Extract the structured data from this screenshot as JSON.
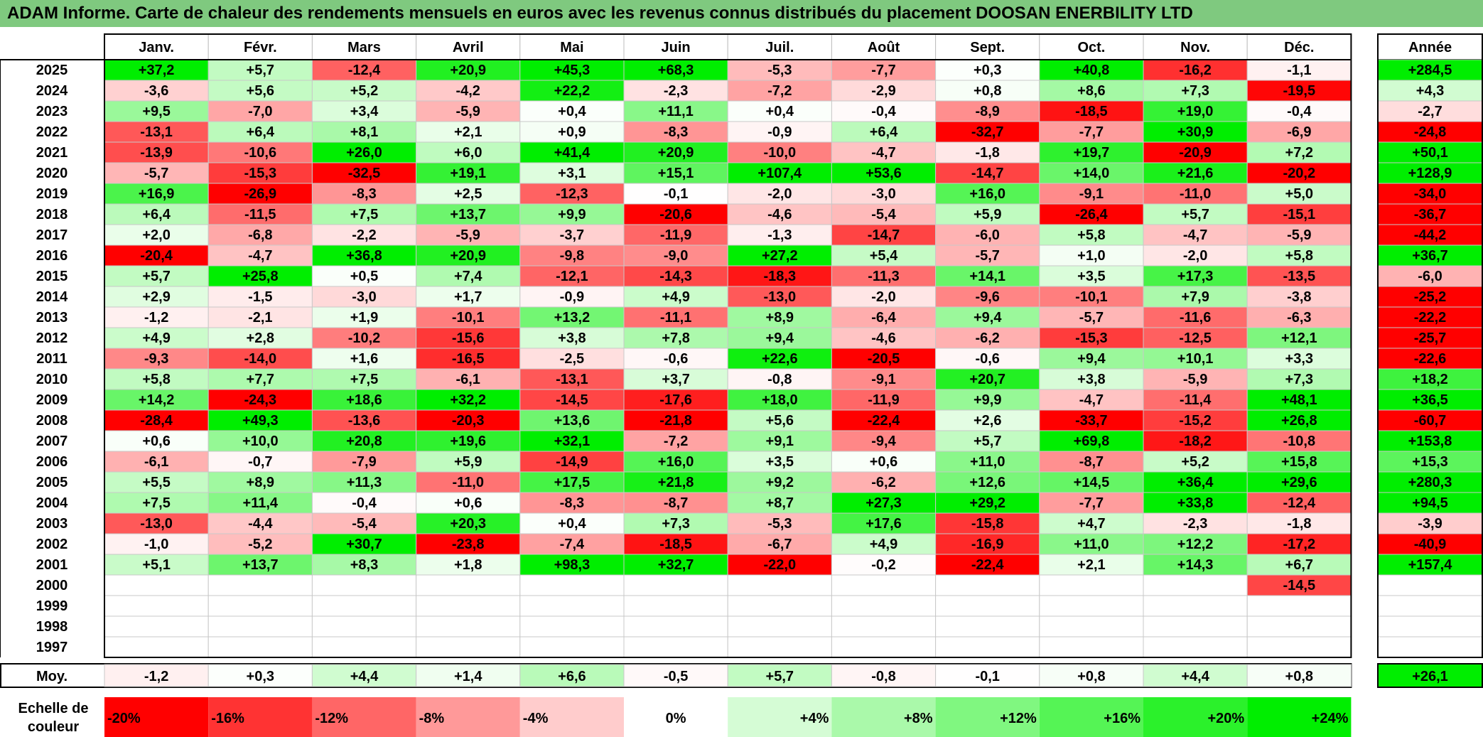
{
  "title": "ADAM Informe. Carte de chaleur des rendements mensuels en euros avec les revenus connus distribués du placement DOOSAN ENERBILITY LTD",
  "chart_data": {
    "type": "heatmap",
    "columns": [
      "Janv.",
      "Févr.",
      "Mars",
      "Avril",
      "Mai",
      "Juin",
      "Juil.",
      "Août",
      "Sept.",
      "Oct.",
      "Nov.",
      "Déc."
    ],
    "annual_header": "Année",
    "rows": [
      {
        "year": "2025",
        "values": [
          "+37,2",
          "+5,7",
          "-12,4",
          "+20,9",
          "+45,3",
          "+68,3",
          "-5,3",
          "-7,7",
          "+0,3",
          "+40,8",
          "-16,2",
          "-1,1"
        ],
        "annual": "+284,5"
      },
      {
        "year": "2024",
        "values": [
          "-3,6",
          "+5,6",
          "+5,2",
          "-4,2",
          "+22,2",
          "-2,3",
          "-7,2",
          "-2,9",
          "+0,8",
          "+8,6",
          "+7,3",
          "-19,5"
        ],
        "annual": "+4,3"
      },
      {
        "year": "2023",
        "values": [
          "+9,5",
          "-7,0",
          "+3,4",
          "-5,9",
          "+0,4",
          "+11,1",
          "+0,4",
          "-0,4",
          "-8,9",
          "-18,5",
          "+19,0",
          "-0,4"
        ],
        "annual": "-2,7"
      },
      {
        "year": "2022",
        "values": [
          "-13,1",
          "+6,4",
          "+8,1",
          "+2,1",
          "+0,9",
          "-8,3",
          "-0,9",
          "+6,4",
          "-32,7",
          "-7,7",
          "+30,9",
          "-6,9"
        ],
        "annual": "-24,8"
      },
      {
        "year": "2021",
        "values": [
          "-13,9",
          "-10,6",
          "+26,0",
          "+6,0",
          "+41,4",
          "+20,9",
          "-10,0",
          "-4,7",
          "-1,8",
          "+19,7",
          "-20,9",
          "+7,2"
        ],
        "annual": "+50,1"
      },
      {
        "year": "2020",
        "values": [
          "-5,7",
          "-15,3",
          "-32,5",
          "+19,1",
          "+3,1",
          "+15,1",
          "+107,4",
          "+53,6",
          "-14,7",
          "+14,0",
          "+21,6",
          "-20,2"
        ],
        "annual": "+128,9"
      },
      {
        "year": "2019",
        "values": [
          "+16,9",
          "-26,9",
          "-8,3",
          "+2,5",
          "-12,3",
          "-0,1",
          "-2,0",
          "-3,0",
          "+16,0",
          "-9,1",
          "-11,0",
          "+5,0"
        ],
        "annual": "-34,0"
      },
      {
        "year": "2018",
        "values": [
          "+6,4",
          "-11,5",
          "+7,5",
          "+13,7",
          "+9,9",
          "-20,6",
          "-4,6",
          "-5,4",
          "+5,9",
          "-26,4",
          "+5,7",
          "-15,1"
        ],
        "annual": "-36,7"
      },
      {
        "year": "2017",
        "values": [
          "+2,0",
          "-6,8",
          "-2,2",
          "-5,9",
          "-3,7",
          "-11,9",
          "-1,3",
          "-14,7",
          "-6,0",
          "+5,8",
          "-4,7",
          "-5,9"
        ],
        "annual": "-44,2"
      },
      {
        "year": "2016",
        "values": [
          "-20,4",
          "-4,7",
          "+36,8",
          "+20,9",
          "-9,8",
          "-9,0",
          "+27,2",
          "+5,4",
          "-5,7",
          "+1,0",
          "-2,0",
          "+5,8"
        ],
        "annual": "+36,7"
      },
      {
        "year": "2015",
        "values": [
          "+5,7",
          "+25,8",
          "+0,5",
          "+7,4",
          "-12,1",
          "-14,3",
          "-18,3",
          "-11,3",
          "+14,1",
          "+3,5",
          "+17,3",
          "-13,5"
        ],
        "annual": "-6,0"
      },
      {
        "year": "2014",
        "values": [
          "+2,9",
          "-1,5",
          "-3,0",
          "+1,7",
          "-0,9",
          "+4,9",
          "-13,0",
          "-2,0",
          "-9,6",
          "-10,1",
          "+7,9",
          "-3,8"
        ],
        "annual": "-25,2"
      },
      {
        "year": "2013",
        "values": [
          "-1,2",
          "-2,1",
          "+1,9",
          "-10,1",
          "+13,2",
          "-11,1",
          "+8,9",
          "-6,4",
          "+9,4",
          "-5,7",
          "-11,6",
          "-6,3"
        ],
        "annual": "-22,2"
      },
      {
        "year": "2012",
        "values": [
          "+4,9",
          "+2,8",
          "-10,2",
          "-15,6",
          "+3,8",
          "+7,8",
          "+9,4",
          "-4,6",
          "-6,2",
          "-15,3",
          "-12,5",
          "+12,1"
        ],
        "annual": "-25,7"
      },
      {
        "year": "2011",
        "values": [
          "-9,3",
          "-14,0",
          "+1,6",
          "-16,5",
          "-2,5",
          "-0,6",
          "+22,6",
          "-20,5",
          "-0,6",
          "+9,4",
          "+10,1",
          "+3,3"
        ],
        "annual": "-22,6"
      },
      {
        "year": "2010",
        "values": [
          "+5,8",
          "+7,7",
          "+7,5",
          "-6,1",
          "-13,1",
          "+3,7",
          "-0,8",
          "-9,1",
          "+20,7",
          "+3,8",
          "-5,9",
          "+7,3"
        ],
        "annual": "+18,2"
      },
      {
        "year": "2009",
        "values": [
          "+14,2",
          "-24,3",
          "+18,6",
          "+32,2",
          "-14,5",
          "-17,6",
          "+18,0",
          "-11,9",
          "+9,9",
          "-4,7",
          "-11,4",
          "+48,1"
        ],
        "annual": "+36,5"
      },
      {
        "year": "2008",
        "values": [
          "-28,4",
          "+49,3",
          "-13,6",
          "-20,3",
          "+13,6",
          "-21,8",
          "+5,6",
          "-22,4",
          "+2,6",
          "-33,7",
          "-15,2",
          "+26,8"
        ],
        "annual": "-60,7"
      },
      {
        "year": "2007",
        "values": [
          "+0,6",
          "+10,0",
          "+20,8",
          "+19,6",
          "+32,1",
          "-7,2",
          "+9,1",
          "-9,4",
          "+5,7",
          "+69,8",
          "-18,2",
          "-10,8"
        ],
        "annual": "+153,8"
      },
      {
        "year": "2006",
        "values": [
          "-6,1",
          "-0,7",
          "-7,9",
          "+5,9",
          "-14,9",
          "+16,0",
          "+3,5",
          "+0,6",
          "+11,0",
          "-8,7",
          "+5,2",
          "+15,8"
        ],
        "annual": "+15,3"
      },
      {
        "year": "2005",
        "values": [
          "+5,5",
          "+8,9",
          "+11,3",
          "-11,0",
          "+17,5",
          "+21,8",
          "+9,2",
          "-6,2",
          "+12,6",
          "+14,5",
          "+36,4",
          "+29,6"
        ],
        "annual": "+280,3"
      },
      {
        "year": "2004",
        "values": [
          "+7,5",
          "+11,4",
          "-0,4",
          "+0,6",
          "-8,3",
          "-8,7",
          "+8,7",
          "+27,3",
          "+29,2",
          "-7,7",
          "+33,8",
          "-12,4"
        ],
        "annual": "+94,5"
      },
      {
        "year": "2003",
        "values": [
          "-13,0",
          "-4,4",
          "-5,4",
          "+20,3",
          "+0,4",
          "+7,3",
          "-5,3",
          "+17,6",
          "-15,8",
          "+4,7",
          "-2,3",
          "-1,8"
        ],
        "annual": "-3,9"
      },
      {
        "year": "2002",
        "values": [
          "-1,0",
          "-5,2",
          "+30,7",
          "-23,8",
          "-7,4",
          "-18,5",
          "-6,7",
          "+4,9",
          "-16,9",
          "+11,0",
          "+12,2",
          "-17,2"
        ],
        "annual": "-40,9"
      },
      {
        "year": "2001",
        "values": [
          "+5,1",
          "+13,7",
          "+8,3",
          "+1,8",
          "+98,3",
          "+32,7",
          "-22,0",
          "-0,2",
          "-22,4",
          "+2,1",
          "+14,3",
          "+6,7"
        ],
        "annual": "+157,4"
      },
      {
        "year": "2000",
        "values": [
          "",
          "",
          "",
          "",
          "",
          "",
          "",
          "",
          "",
          "",
          "",
          "-14,5"
        ],
        "annual": ""
      },
      {
        "year": "1999",
        "values": [
          "",
          "",
          "",
          "",
          "",
          "",
          "",
          "",
          "",
          "",
          "",
          ""
        ],
        "annual": ""
      },
      {
        "year": "1998",
        "values": [
          "",
          "",
          "",
          "",
          "",
          "",
          "",
          "",
          "",
          "",
          "",
          ""
        ],
        "annual": ""
      },
      {
        "year": "1997",
        "values": [
          "",
          "",
          "",
          "",
          "",
          "",
          "",
          "",
          "",
          "",
          "",
          ""
        ],
        "annual": ""
      }
    ],
    "average": {
      "label": "Moy.",
      "values": [
        "-1,2",
        "+0,3",
        "+4,4",
        "+1,4",
        "+6,6",
        "-0,5",
        "+5,7",
        "-0,8",
        "-0,1",
        "+0,8",
        "+4,4",
        "+0,8"
      ],
      "annual": "+26,1"
    },
    "scale": {
      "label_line1": "Echelle de",
      "label_line2": "couleur",
      "entries": [
        {
          "label": "-20%",
          "value": -20
        },
        {
          "label": "-16%",
          "value": -16
        },
        {
          "label": "-12%",
          "value": -12
        },
        {
          "label": "-8%",
          "value": -8
        },
        {
          "label": "-4%",
          "value": -4
        },
        {
          "label": "0%",
          "value": 0
        },
        {
          "label": "+4%",
          "value": 4
        },
        {
          "label": "+8%",
          "value": 8
        },
        {
          "label": "+12%",
          "value": 12
        },
        {
          "label": "+16%",
          "value": 16
        },
        {
          "label": "+20%",
          "value": 20
        },
        {
          "label": "+24%",
          "value": 24
        }
      ]
    },
    "colors": {
      "negative_max": "#ff0000",
      "neutral": "#ffffff",
      "positive_max": "#00ee00",
      "title_bar": "#7fc97f"
    }
  }
}
